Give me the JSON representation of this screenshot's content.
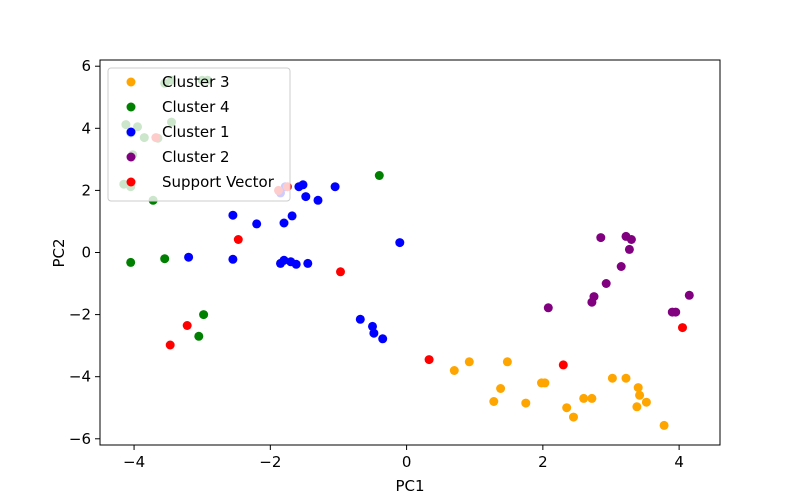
{
  "chart_data": {
    "type": "scatter",
    "title": "",
    "xlabel": "PC1",
    "ylabel": "PC2",
    "xlim": [
      -4.5,
      4.6
    ],
    "ylim": [
      -6.2,
      6.2
    ],
    "x_ticks": [
      -4,
      -2,
      0,
      2,
      4
    ],
    "y_ticks": [
      -6,
      -4,
      -2,
      0,
      2,
      4,
      6
    ],
    "grid": false,
    "legend_position": "upper-left",
    "series": [
      {
        "name": "Cluster 3",
        "color": "#ffa500",
        "points": [
          [
            0.7,
            -3.8
          ],
          [
            0.92,
            -3.52
          ],
          [
            1.48,
            -3.52
          ],
          [
            1.38,
            -4.38
          ],
          [
            1.28,
            -4.8
          ],
          [
            1.75,
            -4.85
          ],
          [
            1.98,
            -4.2
          ],
          [
            2.03,
            -4.2
          ],
          [
            2.35,
            -5.0
          ],
          [
            2.45,
            -5.3
          ],
          [
            2.6,
            -4.7
          ],
          [
            2.72,
            -4.7
          ],
          [
            3.02,
            -4.05
          ],
          [
            3.22,
            -4.05
          ],
          [
            3.4,
            -4.35
          ],
          [
            3.42,
            -4.6
          ],
          [
            3.38,
            -4.97
          ],
          [
            3.52,
            -4.82
          ],
          [
            3.78,
            -5.57
          ]
        ]
      },
      {
        "name": "Cluster 4",
        "color": "#008000",
        "points": [
          [
            -4.12,
            4.12
          ],
          [
            -4.05,
            3.85
          ],
          [
            -3.95,
            4.05
          ],
          [
            -4.02,
            3.15
          ],
          [
            -3.85,
            3.7
          ],
          [
            -3.55,
            5.45
          ],
          [
            -3.45,
            5.55
          ],
          [
            -3.45,
            4.2
          ],
          [
            -3.65,
            3.68
          ],
          [
            -3.72,
            1.68
          ],
          [
            -4.15,
            2.2
          ],
          [
            -4.05,
            2.12
          ],
          [
            -3.0,
            5.55
          ],
          [
            -2.92,
            5.55
          ],
          [
            -4.05,
            -0.32
          ],
          [
            -3.55,
            -0.2
          ],
          [
            -2.98,
            -2.0
          ],
          [
            -3.05,
            -2.7
          ],
          [
            -0.4,
            2.48
          ]
        ]
      },
      {
        "name": "Cluster 1",
        "color": "#0000ff",
        "points": [
          [
            -1.85,
            1.92
          ],
          [
            -1.78,
            2.12
          ],
          [
            -1.58,
            2.12
          ],
          [
            -1.52,
            2.18
          ],
          [
            -1.48,
            1.8
          ],
          [
            -1.3,
            1.68
          ],
          [
            -1.05,
            2.12
          ],
          [
            -2.55,
            1.2
          ],
          [
            -2.2,
            0.92
          ],
          [
            -1.8,
            0.95
          ],
          [
            -1.68,
            1.18
          ],
          [
            -3.2,
            -0.15
          ],
          [
            -2.55,
            -0.22
          ],
          [
            -1.85,
            -0.35
          ],
          [
            -1.8,
            -0.25
          ],
          [
            -1.7,
            -0.3
          ],
          [
            -1.62,
            -0.38
          ],
          [
            -1.45,
            -0.35
          ],
          [
            -0.1,
            0.32
          ],
          [
            -0.68,
            -2.15
          ],
          [
            -0.5,
            -2.38
          ],
          [
            -0.48,
            -2.6
          ],
          [
            -0.35,
            -2.78
          ]
        ]
      },
      {
        "name": "Cluster 2",
        "color": "#800080",
        "points": [
          [
            2.85,
            0.48
          ],
          [
            3.22,
            0.52
          ],
          [
            3.3,
            0.42
          ],
          [
            3.27,
            0.1
          ],
          [
            3.15,
            -0.45
          ],
          [
            2.93,
            -1.0
          ],
          [
            2.75,
            -1.42
          ],
          [
            2.72,
            -1.6
          ],
          [
            2.08,
            -1.78
          ],
          [
            3.9,
            -1.92
          ],
          [
            3.95,
            -1.92
          ],
          [
            4.15,
            -1.38
          ]
        ]
      },
      {
        "name": "Support Vector",
        "color": "#ff0000",
        "points": [
          [
            -2.47,
            0.42
          ],
          [
            -0.97,
            -0.62
          ],
          [
            -3.22,
            -2.35
          ],
          [
            -3.47,
            -2.98
          ],
          [
            0.33,
            -3.45
          ],
          [
            2.3,
            -3.62
          ],
          [
            4.05,
            -2.42
          ],
          [
            -3.68,
            3.7
          ],
          [
            -1.88,
            2.0
          ],
          [
            -1.75,
            2.12
          ]
        ]
      }
    ]
  }
}
